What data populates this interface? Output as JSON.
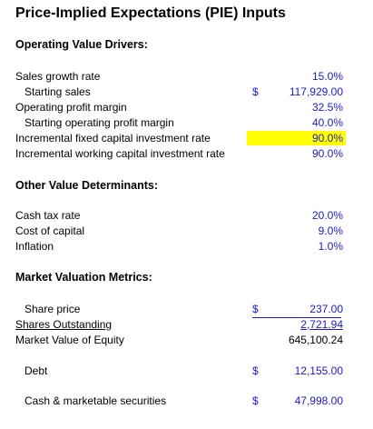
{
  "title": "Price-Implied Expectations (PIE) Inputs",
  "sections": {
    "operating": "Operating Value Drivers:",
    "other": "Other Value Determinants:",
    "market": "Market Valuation Metrics:"
  },
  "rows": {
    "sales_growth": {
      "label": "Sales growth rate",
      "value": "15.0%"
    },
    "starting_sales": {
      "label": "Starting sales",
      "currency": "$",
      "value": "117,929.00"
    },
    "op_margin": {
      "label": "Operating profit margin",
      "value": "32.5%"
    },
    "starting_op_margin": {
      "label": "Starting operating profit margin",
      "value": "40.0%"
    },
    "inc_fixed": {
      "label": "Incremental fixed capital investment rate",
      "value": "90.0%"
    },
    "inc_working": {
      "label": "Incremental working capital investment rate",
      "value": "90.0%"
    },
    "cash_tax": {
      "label": "Cash tax rate",
      "value": "20.0%"
    },
    "cost_capital": {
      "label": "Cost of capital",
      "value": "9.0%"
    },
    "inflation": {
      "label": "Inflation",
      "value": "1.0%"
    },
    "share_price": {
      "label": "Share price",
      "currency": "$",
      "value": "237.00"
    },
    "shares_out": {
      "label": "Shares Outstanding",
      "value": "2,721.94"
    },
    "market_value": {
      "label": "Market Value of Equity",
      "value": "645,100.24"
    },
    "debt": {
      "label": "Debt",
      "currency": "$",
      "value": "12,155.00"
    },
    "cash": {
      "label": "Cash & marketable securities",
      "currency": "$",
      "value": "47,998.00"
    }
  },
  "colors": {
    "input_blue": "#1a1acc",
    "highlight": "#ffff00"
  }
}
